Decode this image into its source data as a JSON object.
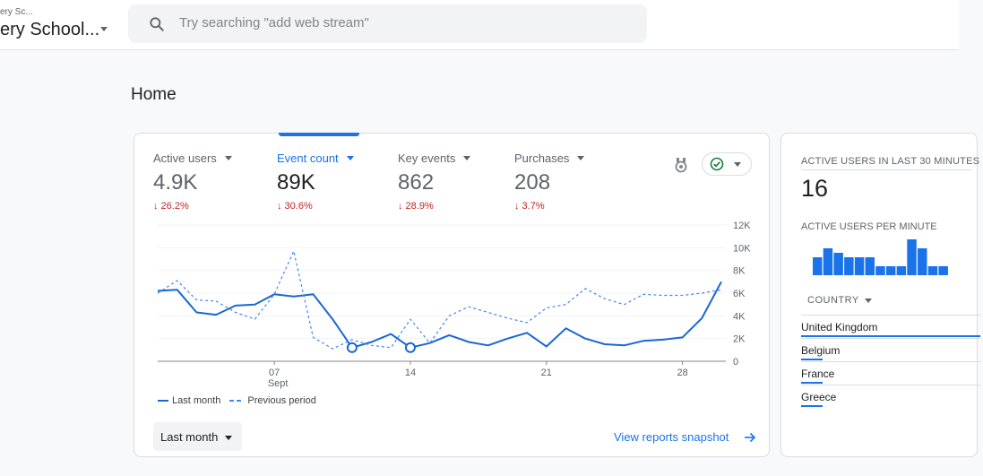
{
  "header": {
    "account_small": "ery Sc...",
    "account_name": "ery School...",
    "search_placeholder": "Try searching \"add web stream\""
  },
  "page_title": "Home",
  "metrics": [
    {
      "label": "Active users",
      "value": "4.9K",
      "delta": "↓ 26.2%"
    },
    {
      "label": "Event count",
      "value": "89K",
      "delta": "↓ 30.6%"
    },
    {
      "label": "Key events",
      "value": "862",
      "delta": "↓ 28.9%"
    },
    {
      "label": "Purchases",
      "value": "208",
      "delta": "↓ 3.7%"
    }
  ],
  "chart_data": {
    "type": "line",
    "y_ticks": [
      "12K",
      "10K",
      "8K",
      "6K",
      "4K",
      "2K",
      "0"
    ],
    "ylim": [
      0,
      12000
    ],
    "x_ticks": [
      {
        "label": "07",
        "sub": "Sept",
        "day": 7
      },
      {
        "label": "14",
        "day": 14
      },
      {
        "label": "21",
        "day": 21
      },
      {
        "label": "28",
        "day": 28
      }
    ],
    "x": [
      1,
      2,
      3,
      4,
      5,
      6,
      7,
      8,
      9,
      10,
      11,
      12,
      13,
      14,
      15,
      16,
      17,
      18,
      19,
      20,
      21,
      22,
      23,
      24,
      25,
      26,
      27,
      28,
      29,
      30
    ],
    "series": [
      {
        "name": "Last month",
        "style": "solid",
        "color": "#1967d2",
        "values": [
          6200,
          6300,
          4300,
          4100,
          4900,
          5000,
          5900,
          5700,
          5900,
          3700,
          1200,
          1700,
          2400,
          1200,
          1600,
          2300,
          1700,
          1400,
          2000,
          2500,
          1300,
          2900,
          2000,
          1500,
          1400,
          1800,
          1900,
          2100,
          3800,
          7000
        ]
      },
      {
        "name": "Previous period",
        "style": "dashed",
        "color": "#4285f4",
        "values": [
          6000,
          7100,
          5400,
          5300,
          4300,
          3700,
          5900,
          9700,
          2100,
          1100,
          1900,
          1400,
          1200,
          3700,
          1600,
          4000,
          4800,
          4300,
          3800,
          3400,
          4700,
          5000,
          6400,
          5500,
          5000,
          5900,
          5800,
          5800,
          6000,
          6300
        ]
      }
    ],
    "markers_at_x": [
      11,
      14
    ]
  },
  "legend": {
    "last": "Last month",
    "previous": "Previous period"
  },
  "period_button": "Last month",
  "view_link": "View reports snapshot",
  "realtime": {
    "title": "ACTIVE USERS IN LAST 30 MINUTES",
    "value": "16",
    "per_minute_label": "ACTIVE USERS PER MINUTE",
    "per_minute_bars": [
      2,
      3,
      2.5,
      2,
      2,
      2,
      1,
      1,
      1,
      4,
      3,
      1,
      1
    ],
    "country_header": "COUNTRY",
    "countries": [
      {
        "name": "United Kingdom",
        "share": 1.0
      },
      {
        "name": "Belgium",
        "share": 0.12
      },
      {
        "name": "France",
        "share": 0.12
      },
      {
        "name": "Greece",
        "share": 0.12
      }
    ]
  }
}
